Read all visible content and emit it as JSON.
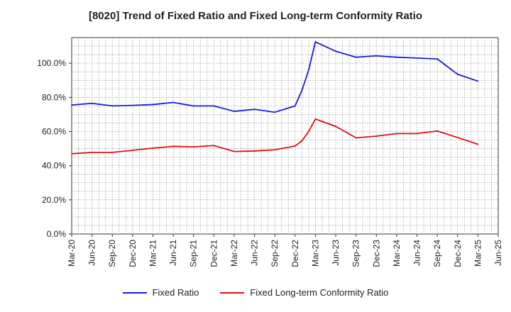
{
  "chart_data": {
    "type": "line",
    "title": "[8020]  Trend of Fixed Ratio and Fixed Long-term Conformity Ratio",
    "x": [
      "Mar-20",
      "Jun-20",
      "Sep-20",
      "Dec-20",
      "Mar-21",
      "Jun-21",
      "Sep-21",
      "Dec-21",
      "Mar-22",
      "Jun-22",
      "Sep-22",
      "Dec-22",
      "Jan-23",
      "Feb-23",
      "Mar-23",
      "Jun-23",
      "Sep-23",
      "Dec-23",
      "Mar-24",
      "Jun-24",
      "Sep-24",
      "Dec-24",
      "Mar-25"
    ],
    "x_tick_labels": [
      "Mar-20",
      "Jun-20",
      "Sep-20",
      "Dec-20",
      "Mar-21",
      "Jun-21",
      "Sep-21",
      "Dec-21",
      "Mar-22",
      "Jun-22",
      "Sep-22",
      "Dec-22",
      "Mar-23",
      "Jun-23",
      "Sep-23",
      "Dec-23",
      "Mar-24",
      "Jun-24",
      "Sep-24",
      "Dec-24",
      "Mar-25",
      "Jun-25"
    ],
    "y_tick_labels": [
      "0.0%",
      "20.0%",
      "40.0%",
      "60.0%",
      "80.0%",
      "100.0%"
    ],
    "ylim": [
      0,
      115
    ],
    "grid": true,
    "legend_position": "bottom",
    "series": [
      {
        "name": "Fixed Ratio",
        "color": "#1a1adc",
        "values": [
          75.5,
          76.5,
          75.0,
          75.3,
          75.8,
          77.0,
          75.0,
          75.0,
          71.8,
          73.0,
          71.3,
          75.0,
          84.0,
          96.0,
          112.5,
          107.0,
          103.5,
          104.3,
          103.5,
          103.0,
          102.5,
          93.5,
          89.5
        ]
      },
      {
        "name": "Fixed Long-term Conformity Ratio",
        "color": "#e01010",
        "values": [
          47.0,
          47.8,
          47.8,
          49.0,
          50.3,
          51.3,
          51.0,
          51.8,
          48.3,
          48.6,
          49.3,
          51.5,
          54.5,
          60.0,
          67.3,
          63.0,
          56.3,
          57.3,
          58.8,
          58.8,
          60.3,
          56.5,
          52.5
        ]
      }
    ]
  }
}
